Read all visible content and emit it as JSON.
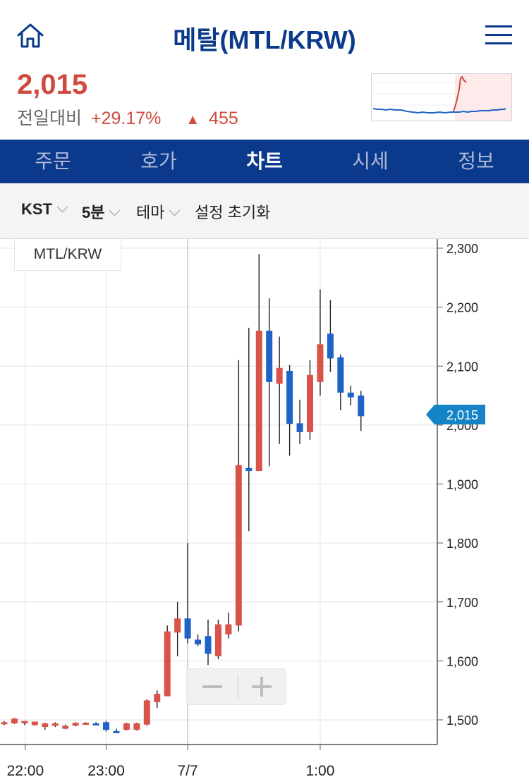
{
  "header": {
    "title": "메탈(MTL/KRW)",
    "price": "2,015",
    "change_label": "전일대비",
    "change_pct": "+29.17%",
    "change_amount": "455",
    "up_color": "#cf4b3f",
    "brand_color": "#0b3a8c"
  },
  "tabs": [
    {
      "label": "주문",
      "active": false
    },
    {
      "label": "호가",
      "active": false
    },
    {
      "label": "차트",
      "active": true
    },
    {
      "label": "시세",
      "active": false
    },
    {
      "label": "정보",
      "active": false
    }
  ],
  "toolbar": {
    "timezone": "KST",
    "interval": "5분",
    "theme": "테마",
    "reset": "설정 초기화"
  },
  "zoom": {
    "minus_icon": "minus-icon",
    "plus_icon": "plus-icon"
  },
  "chart_data": {
    "type": "candlestick",
    "title": "MTL/KRW",
    "current_price": 2015,
    "current_price_label": "2,015",
    "y_axis": {
      "min": 1450,
      "max": 2310,
      "ticks": [
        1500,
        1600,
        1700,
        1800,
        1900,
        2000,
        2100,
        2200,
        2300
      ],
      "tick_labels": [
        "1,500",
        "1,600",
        "1,700",
        "1,800",
        "1,900",
        "2,000",
        "2,100",
        "2,200",
        "2,300"
      ]
    },
    "x_axis": {
      "tick_labels": [
        "22:00",
        "23:00",
        "7/7",
        "1:00"
      ],
      "tick_positions": [
        2,
        10,
        18,
        31
      ]
    },
    "up_color": "#d9534a",
    "down_color": "#1e63c8",
    "candles": [
      {
        "i": 0,
        "o": 1494,
        "h": 1498,
        "l": 1491,
        "c": 1496
      },
      {
        "i": 1,
        "o": 1494,
        "h": 1503,
        "l": 1493,
        "c": 1502
      },
      {
        "i": 2,
        "o": 1494,
        "h": 1498,
        "l": 1491,
        "c": 1498
      },
      {
        "i": 3,
        "o": 1491,
        "h": 1497,
        "l": 1490,
        "c": 1497
      },
      {
        "i": 4,
        "o": 1488,
        "h": 1495,
        "l": 1483,
        "c": 1494
      },
      {
        "i": 5,
        "o": 1490,
        "h": 1496,
        "l": 1488,
        "c": 1494
      },
      {
        "i": 6,
        "o": 1485,
        "h": 1492,
        "l": 1484,
        "c": 1490
      },
      {
        "i": 7,
        "o": 1490,
        "h": 1496,
        "l": 1489,
        "c": 1495
      },
      {
        "i": 8,
        "o": 1493,
        "h": 1496,
        "l": 1492,
        "c": 1495
      },
      {
        "i": 9,
        "o": 1494,
        "h": 1496,
        "l": 1492,
        "c": 1493
      },
      {
        "i": 10,
        "o": 1496,
        "h": 1498,
        "l": 1480,
        "c": 1483
      },
      {
        "i": 11,
        "o": 1481,
        "h": 1485,
        "l": 1478,
        "c": 1480
      },
      {
        "i": 12,
        "o": 1483,
        "h": 1495,
        "l": 1482,
        "c": 1494
      },
      {
        "i": 13,
        "o": 1483,
        "h": 1495,
        "l": 1482,
        "c": 1494
      },
      {
        "i": 14,
        "o": 1492,
        "h": 1535,
        "l": 1490,
        "c": 1533
      },
      {
        "i": 15,
        "o": 1530,
        "h": 1550,
        "l": 1520,
        "c": 1544
      },
      {
        "i": 16,
        "o": 1540,
        "h": 1660,
        "l": 1540,
        "c": 1650
      },
      {
        "i": 17,
        "o": 1648,
        "h": 1700,
        "l": 1608,
        "c": 1672
      },
      {
        "i": 18,
        "o": 1672,
        "h": 1800,
        "l": 1630,
        "c": 1638
      },
      {
        "i": 19,
        "o": 1636,
        "h": 1645,
        "l": 1625,
        "c": 1628
      },
      {
        "i": 20,
        "o": 1642,
        "h": 1670,
        "l": 1593,
        "c": 1612
      },
      {
        "i": 21,
        "o": 1608,
        "h": 1670,
        "l": 1603,
        "c": 1662
      },
      {
        "i": 22,
        "o": 1645,
        "h": 1682,
        "l": 1638,
        "c": 1662
      },
      {
        "i": 23,
        "o": 1660,
        "h": 2110,
        "l": 1650,
        "c": 1932
      },
      {
        "i": 24,
        "o": 1927,
        "h": 2165,
        "l": 1820,
        "c": 1922
      },
      {
        "i": 25,
        "o": 1922,
        "h": 2290,
        "l": 1922,
        "c": 2160
      },
      {
        "i": 26,
        "o": 2160,
        "h": 2215,
        "l": 1930,
        "c": 2073
      },
      {
        "i": 27,
        "o": 2070,
        "h": 2150,
        "l": 1968,
        "c": 2097
      },
      {
        "i": 28,
        "o": 2092,
        "h": 2102,
        "l": 1948,
        "c": 2002
      },
      {
        "i": 29,
        "o": 2003,
        "h": 2043,
        "l": 1968,
        "c": 1988
      },
      {
        "i": 30,
        "o": 1988,
        "h": 2110,
        "l": 1975,
        "c": 2085
      },
      {
        "i": 31,
        "o": 2073,
        "h": 2230,
        "l": 2050,
        "c": 2137
      },
      {
        "i": 32,
        "o": 2155,
        "h": 2212,
        "l": 2090,
        "c": 2113
      },
      {
        "i": 33,
        "o": 2115,
        "h": 2120,
        "l": 2025,
        "c": 2055
      },
      {
        "i": 34,
        "o": 2055,
        "h": 2067,
        "l": 2033,
        "c": 2047
      },
      {
        "i": 35,
        "o": 2050,
        "h": 2058,
        "l": 1990,
        "c": 2015
      }
    ],
    "grid": true
  }
}
